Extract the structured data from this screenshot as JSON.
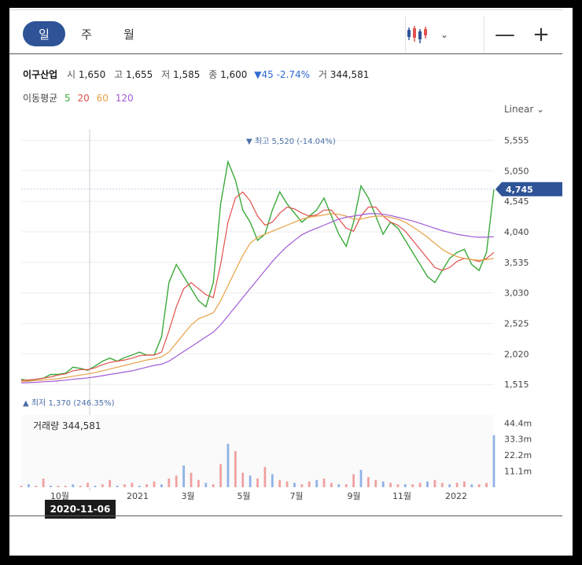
{
  "tabs": [
    {
      "label": "일",
      "active": true
    },
    {
      "label": "주",
      "active": false
    },
    {
      "label": "월",
      "active": false
    }
  ],
  "toolbar": {
    "chart_type_icon": "candlestick-icon",
    "chevron": "⌄",
    "zoom_out": "—",
    "zoom_in": "+"
  },
  "stock": {
    "name": "이구산업",
    "open_label": "시",
    "open": "1,650",
    "high_label": "고",
    "high": "1,655",
    "low_label": "저",
    "low": "1,585",
    "close_label": "종",
    "close": "1,600",
    "change": "▼45 -2.74%",
    "volume_label": "거",
    "volume": "344,581"
  },
  "ma": {
    "label": "이동평균",
    "periods": [
      {
        "text": "5",
        "color": "#3aaa3a"
      },
      {
        "text": "20",
        "color": "#e0524d"
      },
      {
        "text": "60",
        "color": "#e8a046"
      },
      {
        "text": "120",
        "color": "#a25bd6"
      }
    ]
  },
  "scale_toggle": "Linear ⌄",
  "chart_data": {
    "type": "line",
    "price_axis": {
      "ticks": [
        "5,555",
        "5,050",
        "4,545",
        "4,040",
        "3,535",
        "3,030",
        "2,525",
        "2,020",
        "1,515"
      ],
      "ylim": [
        1440,
        5600
      ]
    },
    "current_price": {
      "value": 4745,
      "label": "4,745",
      "color": "#2f5397"
    },
    "max_annotation": {
      "value": 5520,
      "label": "▼ 최고 5,520 (-14.04%)"
    },
    "min_annotation": {
      "value": 1370,
      "label": "▲ 최저 1,370 (246.35%)"
    },
    "volume": {
      "label": "거래량",
      "value": "344,581",
      "ticks": [
        "44.4m",
        "33.3m",
        "22.2m",
        "11.1m"
      ],
      "ymax": 50
    },
    "x_ticks": [
      "10월",
      "2021",
      "3월",
      "5월",
      "7월",
      "9월",
      "11월",
      "2022"
    ],
    "crosshair_date": "2020-11-06",
    "series": [
      {
        "name": "5",
        "color": "#3aaa3a",
        "values": [
          1600,
          1580,
          1600,
          1620,
          1680,
          1680,
          1700,
          1800,
          1780,
          1750,
          1820,
          1900,
          1950,
          1900,
          1960,
          2000,
          2050,
          2000,
          2000,
          2300,
          3200,
          3500,
          3300,
          3100,
          2900,
          2800,
          3200,
          4500,
          5200,
          4900,
          4400,
          4200,
          3900,
          4000,
          4400,
          4700,
          4500,
          4350,
          4200,
          4300,
          4400,
          4600,
          4300,
          4000,
          3800,
          4200,
          4800,
          4600,
          4300,
          4000,
          4200,
          4100,
          3900,
          3700,
          3500,
          3300,
          3200,
          3400,
          3600,
          3700,
          3750,
          3500,
          3400,
          3700,
          4745
        ]
      },
      {
        "name": "20",
        "color": "#e0524d",
        "values": [
          1580,
          1590,
          1600,
          1620,
          1640,
          1670,
          1690,
          1740,
          1760,
          1760,
          1790,
          1840,
          1880,
          1900,
          1920,
          1950,
          1990,
          2000,
          2000,
          2050,
          2400,
          2800,
          3100,
          3200,
          3100,
          3000,
          2950,
          3500,
          4200,
          4600,
          4700,
          4550,
          4300,
          4150,
          4200,
          4350,
          4450,
          4420,
          4350,
          4300,
          4320,
          4400,
          4400,
          4250,
          4100,
          4050,
          4300,
          4450,
          4450,
          4300,
          4200,
          4150,
          4050,
          3900,
          3750,
          3600,
          3450,
          3400,
          3450,
          3550,
          3600,
          3580,
          3550,
          3600,
          3700
        ]
      },
      {
        "name": "60",
        "color": "#e8a046",
        "values": [
          1560,
          1570,
          1580,
          1590,
          1600,
          1610,
          1630,
          1650,
          1670,
          1690,
          1710,
          1740,
          1770,
          1800,
          1830,
          1860,
          1890,
          1920,
          1940,
          1970,
          2050,
          2200,
          2350,
          2500,
          2600,
          2650,
          2700,
          2900,
          3150,
          3400,
          3650,
          3850,
          3950,
          4000,
          4050,
          4100,
          4150,
          4200,
          4250,
          4280,
          4300,
          4320,
          4340,
          4330,
          4300,
          4250,
          4250,
          4280,
          4300,
          4300,
          4280,
          4250,
          4200,
          4120,
          4040,
          3950,
          3850,
          3750,
          3680,
          3630,
          3600,
          3580,
          3570,
          3580,
          3600
        ]
      },
      {
        "name": "120",
        "color": "#a25bd6",
        "values": [
          1540,
          1545,
          1550,
          1560,
          1565,
          1575,
          1585,
          1600,
          1610,
          1625,
          1640,
          1660,
          1680,
          1700,
          1720,
          1740,
          1770,
          1800,
          1830,
          1850,
          1900,
          1980,
          2060,
          2140,
          2220,
          2300,
          2380,
          2500,
          2650,
          2800,
          2950,
          3100,
          3250,
          3400,
          3550,
          3680,
          3800,
          3900,
          3990,
          4050,
          4100,
          4150,
          4200,
          4250,
          4280,
          4300,
          4320,
          4340,
          4340,
          4330,
          4310,
          4280,
          4250,
          4220,
          4180,
          4140,
          4100,
          4060,
          4030,
          4000,
          3980,
          3960,
          3950,
          3950,
          3960
        ]
      }
    ],
    "volume_bars": [
      1,
      2,
      1,
      6,
      1,
      1,
      1,
      2,
      1,
      3,
      1,
      2,
      5,
      1,
      2,
      3,
      1,
      2,
      4,
      2,
      6,
      8,
      15,
      10,
      5,
      3,
      2,
      16,
      30,
      25,
      10,
      8,
      6,
      14,
      9,
      5,
      4,
      3,
      2,
      4,
      5,
      6,
      3,
      2,
      2,
      9,
      12,
      7,
      5,
      4,
      3,
      2,
      2,
      2,
      3,
      4,
      5,
      3,
      2,
      3,
      4,
      2,
      2,
      3,
      36
    ]
  },
  "crosshair": {
    "date": "2020-11-06"
  }
}
